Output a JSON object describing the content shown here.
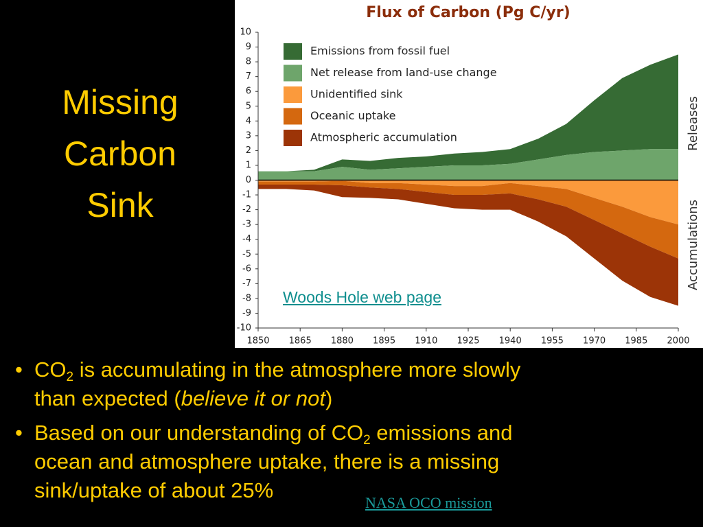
{
  "slide": {
    "title_lines": [
      "Missing",
      "Carbon",
      "Sink"
    ],
    "bullets": [
      [
        "CO",
        "2",
        " is accumulating in the atmosphere more slowly",
        "than expected (",
        "believe it or not",
        ")"
      ],
      [
        "Based on our understanding of CO",
        "2",
        " emissions and",
        "ocean and atmosphere uptake, there is a missing",
        "sink/uptake of about 25%"
      ]
    ],
    "link_chart": "Woods Hole web page",
    "link_nasa": "NASA OCO mission"
  },
  "chart_data": {
    "type": "area",
    "title": "Flux of Carbon (Pg C/yr)",
    "annotations": [
      "Releases",
      "Accumulations"
    ],
    "x": [
      1850,
      1860,
      1870,
      1880,
      1890,
      1900,
      1910,
      1920,
      1930,
      1940,
      1950,
      1960,
      1970,
      1980,
      1990,
      2000
    ],
    "series": [
      {
        "name": "Emissions from fossil fuel",
        "color": "#366b34",
        "values": [
          0,
          0,
          0.1,
          0.5,
          0.6,
          0.7,
          0.7,
          0.8,
          0.9,
          1.0,
          1.4,
          2.1,
          3.5,
          4.9,
          5.7,
          6.4
        ]
      },
      {
        "name": "Net release from land-use change",
        "color": "#6ea56b",
        "values": [
          0.6,
          0.6,
          0.6,
          0.9,
          0.7,
          0.8,
          0.9,
          1.0,
          1.0,
          1.1,
          1.4,
          1.7,
          1.9,
          2.0,
          2.1,
          2.1
        ]
      },
      {
        "name": "Unidentified sink",
        "color": "#fb9a3c",
        "values": [
          -0.1,
          -0.1,
          -0.1,
          -0.05,
          -0.2,
          -0.2,
          -0.3,
          -0.4,
          -0.4,
          -0.2,
          -0.4,
          -0.6,
          -1.2,
          -1.8,
          -2.5,
          -3.0
        ]
      },
      {
        "name": "Oceanic uptake",
        "color": "#d4680f",
        "values": [
          -0.2,
          -0.2,
          -0.2,
          -0.3,
          -0.3,
          -0.4,
          -0.5,
          -0.6,
          -0.6,
          -0.7,
          -0.9,
          -1.2,
          -1.5,
          -1.8,
          -2.0,
          -2.3
        ]
      },
      {
        "name": "Atmospheric accumulation",
        "color": "#9c3407",
        "values": [
          -0.3,
          -0.3,
          -0.4,
          -0.8,
          -0.7,
          -0.7,
          -0.8,
          -0.9,
          -1.0,
          -1.1,
          -1.5,
          -2.0,
          -2.6,
          -3.2,
          -3.4,
          -3.2
        ]
      }
    ],
    "xlim": [
      1850,
      2000
    ],
    "xticks": [
      1850,
      1865,
      1880,
      1895,
      1910,
      1925,
      1940,
      1955,
      1970,
      1985,
      2000
    ],
    "ylim": [
      -10,
      10
    ],
    "yticks": [
      -10,
      -9,
      -8,
      -7,
      -6,
      -5,
      -4,
      -3,
      -2,
      -1,
      0,
      1,
      2,
      3,
      4,
      5,
      6,
      7,
      8,
      9,
      10
    ]
  }
}
